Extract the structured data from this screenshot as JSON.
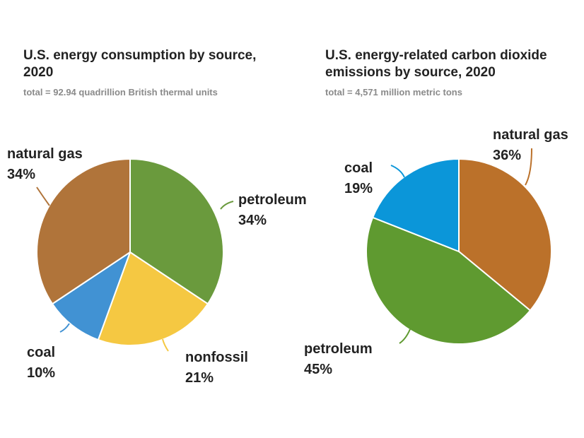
{
  "chart_data": [
    {
      "type": "pie",
      "title": "U.S. energy consumption by source, 2020",
      "subtitle": "total = 92.94 quadrillion British thermal units",
      "slices": [
        {
          "label": "petroleum",
          "value": 34,
          "value_label": "34%",
          "color": "#6a9a3d"
        },
        {
          "label": "nonfossil",
          "value": 21,
          "value_label": "21%",
          "color": "#f5c842"
        },
        {
          "label": "coal",
          "value": 10,
          "value_label": "10%",
          "color": "#4192d3"
        },
        {
          "label": "natural gas",
          "value": 34,
          "value_label": "34%",
          "color": "#b0743a"
        }
      ]
    },
    {
      "type": "pie",
      "title": "U.S. energy-related carbon dioxide emissions by source, 2020",
      "subtitle": "total = 4,571 million metric tons",
      "slices": [
        {
          "label": "natural gas",
          "value": 36,
          "value_label": "36%",
          "color": "#bb712a"
        },
        {
          "label": "petroleum",
          "value": 45,
          "value_label": "45%",
          "color": "#5f9a30"
        },
        {
          "label": "coal",
          "value": 19,
          "value_label": "19%",
          "color": "#0b96d9"
        }
      ]
    }
  ]
}
